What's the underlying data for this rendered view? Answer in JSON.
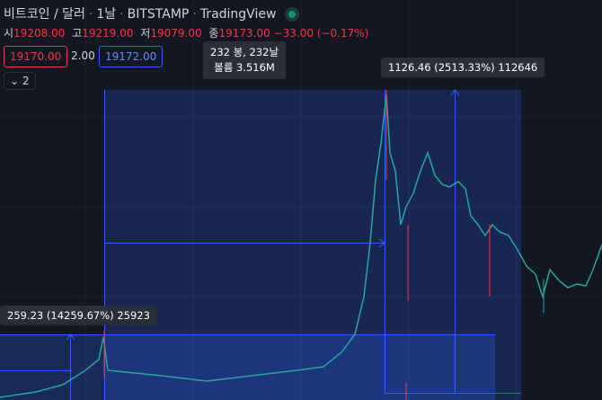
{
  "header": {
    "symbol": "비트코인 / 달러",
    "interval": "1날",
    "exchange": "BITSTAMP",
    "source": "TradingView"
  },
  "ohlc": {
    "open_label": "시",
    "open": "19208.00",
    "high_label": "고",
    "high": "19219.00",
    "low_label": "저",
    "low": "19079.00",
    "close_label": "종",
    "close": "19173.00",
    "change": "−33.00 (−0.17%)"
  },
  "trade": {
    "sell": "19170.00",
    "spread": "2.00",
    "buy": "19172.00"
  },
  "indicators": {
    "count": "2"
  },
  "tooltip": {
    "bars": "232 봉, 232날",
    "volume": "볼륨 3.516M"
  },
  "measures": [
    {
      "label": "1126.46 (2513.33%) 112646"
    },
    {
      "label": "259.23 (14259.67%) 25923"
    }
  ]
}
